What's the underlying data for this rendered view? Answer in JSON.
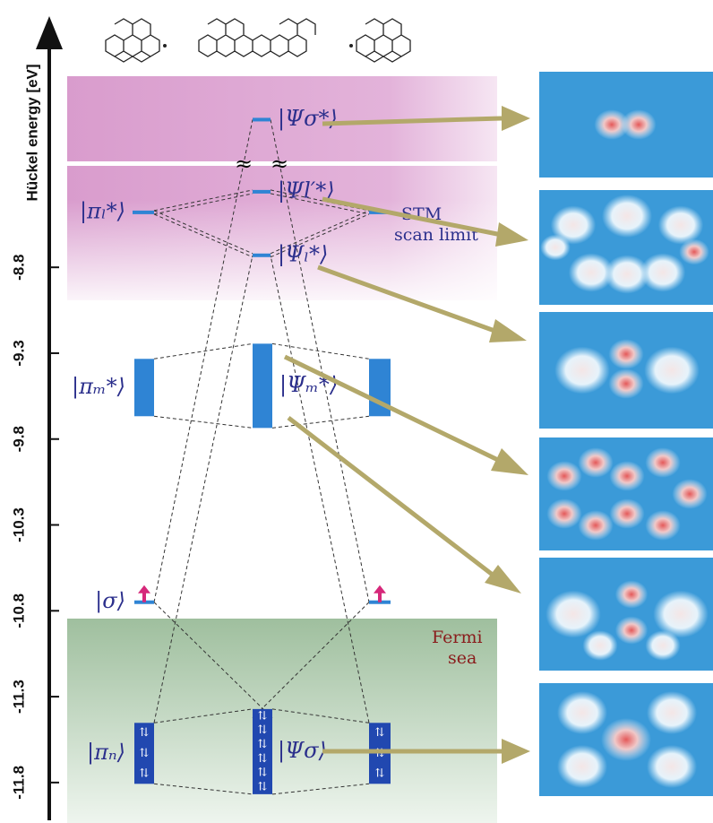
{
  "axis": {
    "label": "Hückel energy [eV]",
    "ylim": [
      -12.02,
      -7.4
    ],
    "yticks": [
      -8.8,
      -9.3,
      -9.8,
      -10.3,
      -10.8,
      -11.3,
      -11.8
    ]
  },
  "levels": [
    {
      "label": "|Ψσ*⟩",
      "energy": -7.94
    },
    {
      "label": "|Ψl′*⟩",
      "energy": -8.36
    },
    {
      "label": "|πₗ*⟩",
      "energy": -8.48
    },
    {
      "energy": -8.48
    },
    {
      "label": "|Ψₗ*⟩",
      "energy": -8.73
    },
    {
      "label": "|πₘ*⟩",
      "energy": -9.5
    },
    {
      "energy": -9.5
    },
    {
      "label": "|Ψₘ*⟩",
      "energy": -9.49
    },
    {
      "label": "|σ⟩",
      "energy": -10.75
    },
    {
      "energy": -10.75
    },
    {
      "label": "|πₙ⟩",
      "energy": -11.63
    },
    {
      "label": "|Ψσ⟩",
      "energy": -11.62
    },
    {
      "energy": -11.63
    }
  ],
  "annotations": {
    "stm": "STM",
    "scan_limit": "scan limit",
    "fermi": "Fermi",
    "sea": "sea",
    "break": "≈",
    "spin_pair": "⇅"
  }
}
